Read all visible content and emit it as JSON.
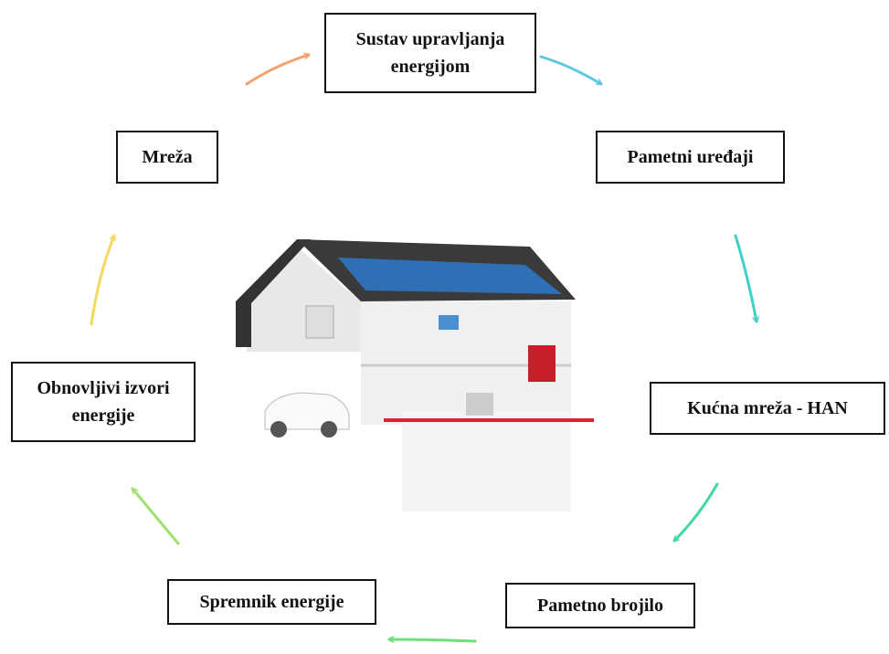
{
  "nodes": [
    {
      "lines": [
        "Sustav upravljanja",
        "energijom"
      ]
    },
    {
      "lines": [
        "Mreža"
      ]
    },
    {
      "lines": [
        "Pametni uređaji"
      ]
    },
    {
      "lines": [
        "Obnovljivi izvori",
        "energije"
      ]
    },
    {
      "lines": [
        "Kućna mreža - HAN"
      ]
    },
    {
      "lines": [
        "Spremnik energije"
      ]
    },
    {
      "lines": [
        "Pametno brojilo"
      ]
    }
  ]
}
